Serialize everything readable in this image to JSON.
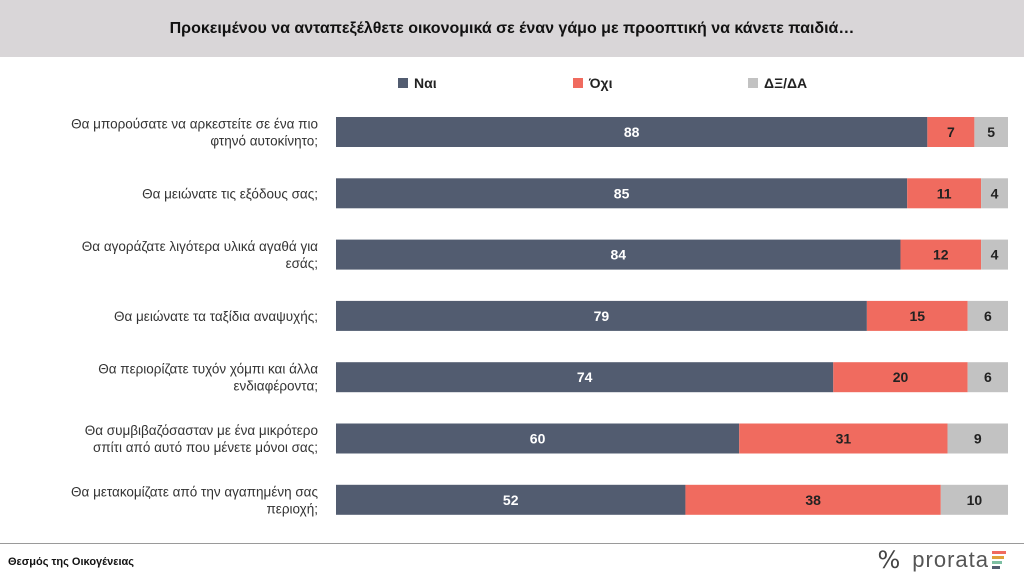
{
  "colors": {
    "yes": "#525c70",
    "no": "#f06b5f",
    "dk": "#c2c2c2"
  },
  "footer": {
    "source": "Θεσμός της Οικογένειας"
  },
  "logo": {
    "mark": "%",
    "word": "prorata",
    "bar_colors": [
      "#f06b5f",
      "#e0a13a",
      "#7cbfa3",
      "#525c70"
    ]
  },
  "chart_data": {
    "type": "bar",
    "orientation": "horizontal",
    "stacked": true,
    "title": "Προκειμένου να ανταπεξέλθετε οικονομικά σε έναν γάμο με προοπτική να κάνετε παιδιά…",
    "legend_position": "top",
    "xlim": [
      0,
      100
    ],
    "categories": [
      [
        "Θα μπορούσατε να αρκεστείτε σε ένα πιο",
        "φτηνό αυτοκίνητο;"
      ],
      [
        "Θα μειώνατε τις εξόδους σας;"
      ],
      [
        "Θα αγοράζατε λιγότερα υλικά αγαθά για",
        "εσάς;"
      ],
      [
        "Θα μειώνατε τα ταξίδια αναψυχής;"
      ],
      [
        "Θα περιορίζατε τυχόν χόμπι και άλλα",
        "ενδιαφέροντα;"
      ],
      [
        "Θα συμβιβαζόσασταν με ένα μικρότερο",
        "σπίτι από αυτό που μένετε μόνοι σας;"
      ],
      [
        "Θα μετακομίζατε από την αγαπημένη σας",
        "περιοχή;"
      ]
    ],
    "series": [
      {
        "name": "Ναι",
        "color": "#525c70",
        "values": [
          88,
          85,
          84,
          79,
          74,
          60,
          52
        ]
      },
      {
        "name": "Όχι",
        "color": "#f06b5f",
        "values": [
          7,
          11,
          12,
          15,
          20,
          31,
          38
        ]
      },
      {
        "name": "ΔΞ/ΔΑ",
        "color": "#c2c2c2",
        "values": [
          5,
          4,
          4,
          6,
          6,
          9,
          10
        ]
      }
    ]
  }
}
